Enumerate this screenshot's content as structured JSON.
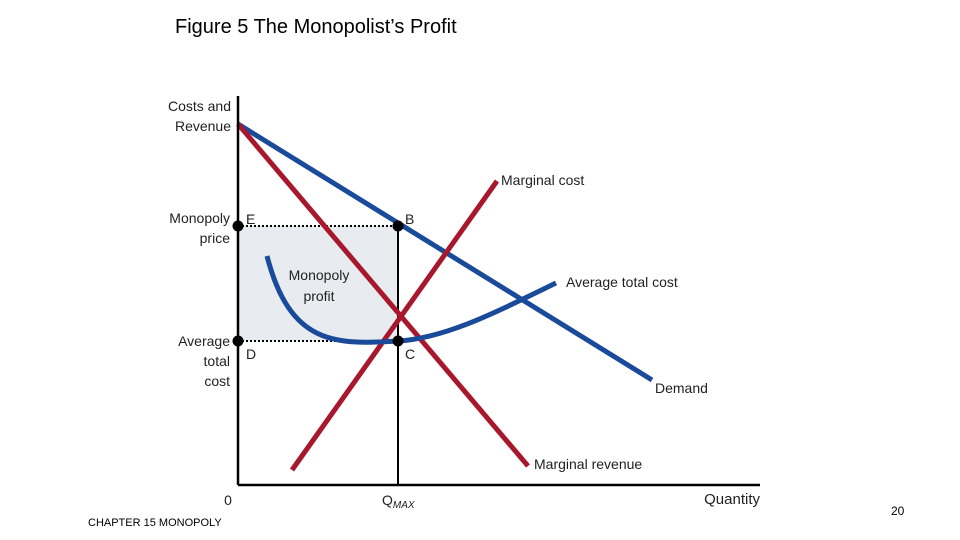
{
  "title": "Figure 5 The Monopolist’s Profit",
  "footer": "CHAPTER 15 MONOPOLY",
  "page_number": "20",
  "colors": {
    "demand": "#1a4a9a",
    "marginal_cost": "#a8182c",
    "area": "#e8ecf0",
    "axis": "#000000"
  },
  "axes": {
    "y_label_line1": "Costs and",
    "y_label_line2": "Revenue",
    "x_label": "Quantity",
    "origin": "0",
    "q_label": "Q",
    "q_sub": "MAX"
  },
  "curves": {
    "marginal_cost": "Marginal cost",
    "average_total_cost": "Average total cost",
    "demand": "Demand",
    "marginal_revenue": "Marginal revenue"
  },
  "points": {
    "E": "E",
    "B": "B",
    "C": "C",
    "D": "D"
  },
  "labels": {
    "monopoly_price_1": "Monopoly",
    "monopoly_price_2": "price",
    "atc_1": "Average",
    "atc_2": "total",
    "atc_3": "cost",
    "profit_1": "Monopoly",
    "profit_2": "profit"
  }
}
